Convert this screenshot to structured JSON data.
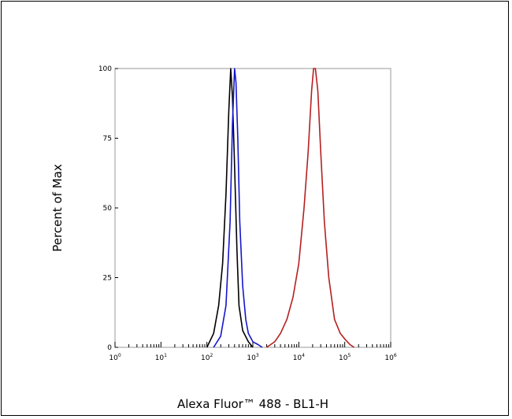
{
  "chart_data": {
    "type": "line",
    "title": "",
    "xlabel": "Alexa Fluor™ 488 - BL1-H",
    "ylabel": "Percent of Max",
    "x_scale": "log",
    "xlim": [
      1,
      1000000
    ],
    "ylim": [
      0,
      100
    ],
    "x_ticks": [
      {
        "base": "10",
        "exp": "0",
        "value": 1
      },
      {
        "base": "10",
        "exp": "1",
        "value": 10
      },
      {
        "base": "10",
        "exp": "2",
        "value": 100
      },
      {
        "base": "10",
        "exp": "3",
        "value": 1000
      },
      {
        "base": "10",
        "exp": "4",
        "value": 10000
      },
      {
        "base": "10",
        "exp": "5",
        "value": 100000
      },
      {
        "base": "10",
        "exp": "6",
        "value": 1000000
      }
    ],
    "y_ticks": [
      "0",
      "25",
      "50",
      "75",
      "100"
    ],
    "y_tick_values": [
      0,
      25,
      50,
      75,
      100
    ],
    "grid": false,
    "legend": "none",
    "series": [
      {
        "color": "#000000",
        "x": [
          100,
          140,
          180,
          220,
          260,
          300,
          330,
          360,
          400,
          450,
          500,
          600,
          800,
          1000
        ],
        "y": [
          0,
          5,
          15,
          30,
          55,
          85,
          100,
          90,
          65,
          35,
          15,
          6,
          2,
          0
        ]
      },
      {
        "color": "#1515cc",
        "x": [
          140,
          200,
          260,
          320,
          360,
          400,
          430,
          470,
          520,
          600,
          700,
          800,
          1000,
          1300,
          1600
        ],
        "y": [
          0,
          4,
          15,
          45,
          80,
          100,
          95,
          75,
          45,
          22,
          10,
          5,
          2,
          1,
          0
        ]
      },
      {
        "color": "#b52020",
        "x": [
          2000,
          3000,
          4000,
          5500,
          7500,
          10000,
          13000,
          16000,
          19000,
          21000,
          23000,
          26000,
          30000,
          36000,
          45000,
          60000,
          80000,
          100000,
          130000,
          160000
        ],
        "y": [
          0,
          2,
          5,
          10,
          18,
          30,
          50,
          70,
          92,
          100,
          100,
          92,
          70,
          45,
          25,
          10,
          5,
          3,
          1,
          0
        ]
      }
    ]
  }
}
